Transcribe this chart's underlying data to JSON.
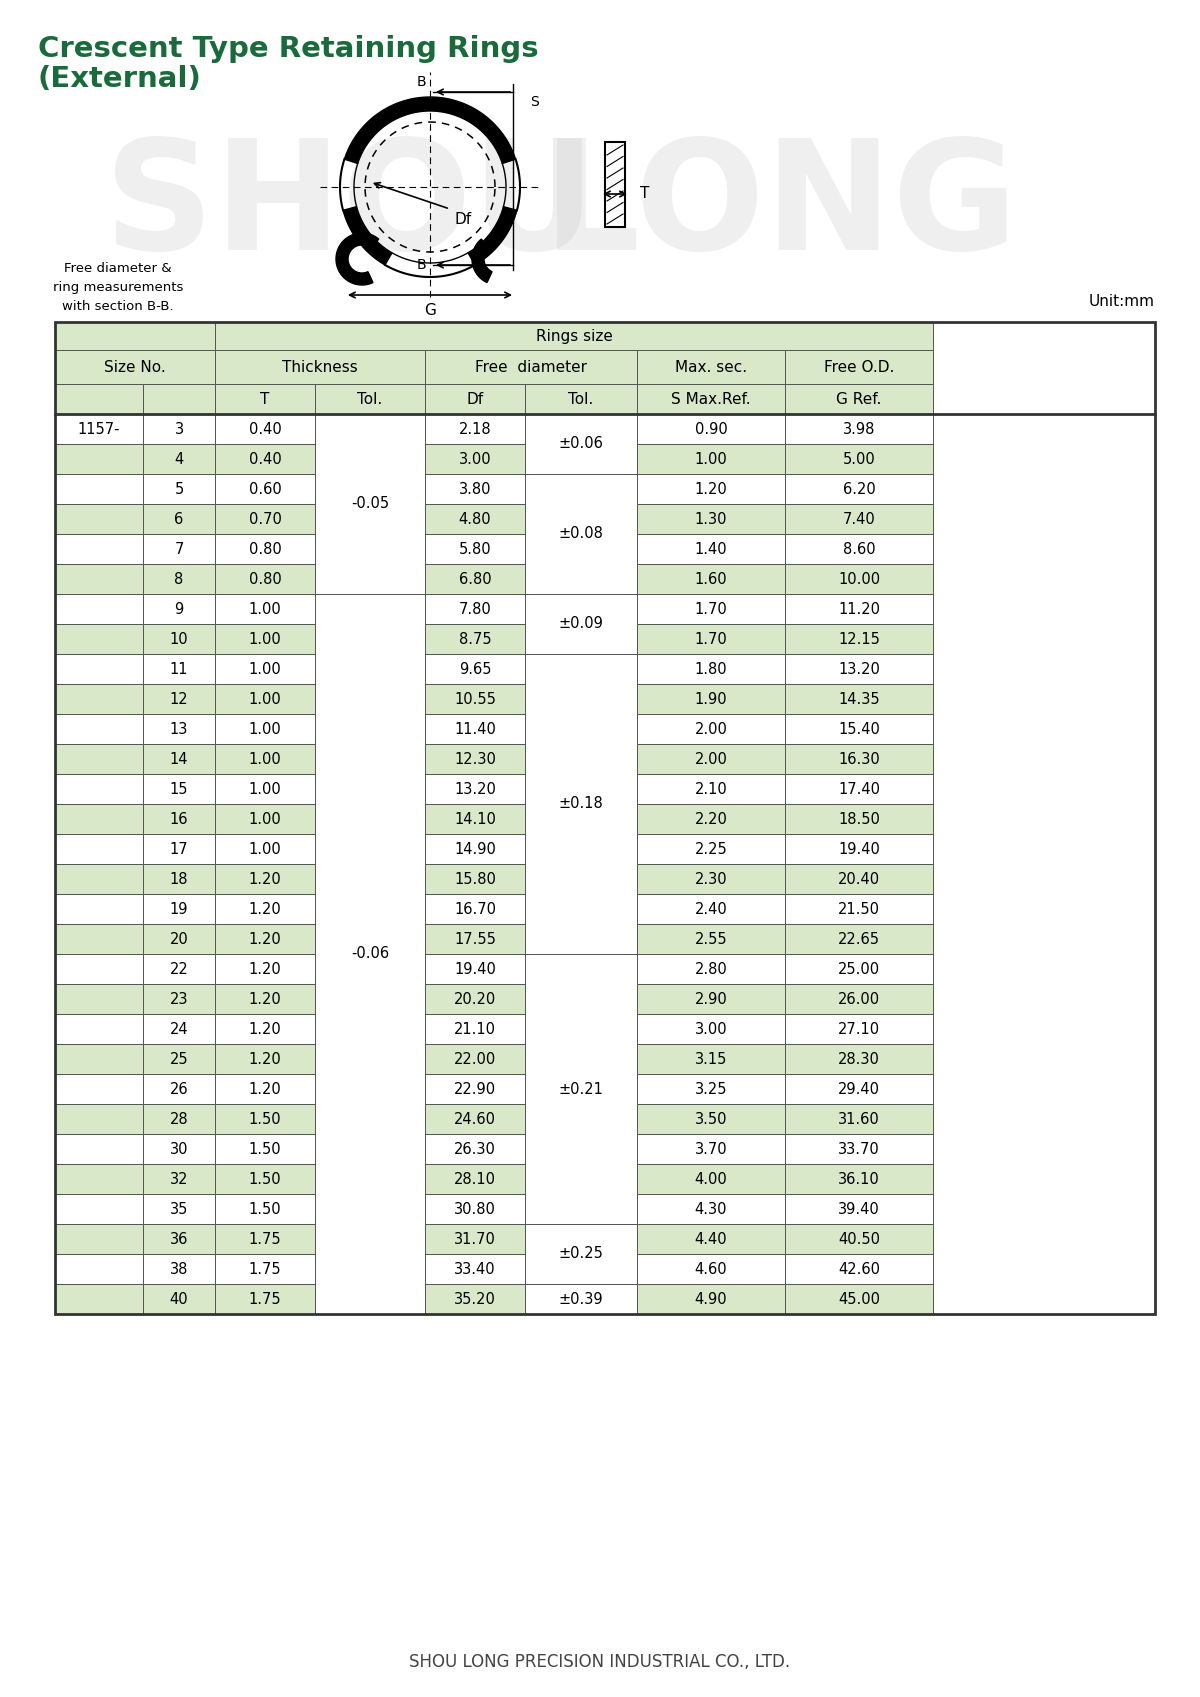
{
  "title_line1": "Crescent Type Retaining Rings",
  "title_line2": "(External)",
  "title_color": "#1a6b3c",
  "bg_color": "#ffffff",
  "unit_text": "Unit:mm",
  "footer_text": "SHOU LONG PRECISION INDUSTRIAL CO., LTD.",
  "light_green": "#d8e8c8",
  "table_border_color": "#555555",
  "table_data": [
    [
      "1157-",
      "3",
      "0.40",
      "2.18",
      "0.90",
      "3.98"
    ],
    [
      "",
      "4",
      "0.40",
      "3.00",
      "1.00",
      "5.00"
    ],
    [
      "",
      "5",
      "0.60",
      "3.80",
      "1.20",
      "6.20"
    ],
    [
      "",
      "6",
      "0.70",
      "4.80",
      "1.30",
      "7.40"
    ],
    [
      "",
      "7",
      "0.80",
      "5.80",
      "1.40",
      "8.60"
    ],
    [
      "",
      "8",
      "0.80",
      "6.80",
      "1.60",
      "10.00"
    ],
    [
      "",
      "9",
      "1.00",
      "7.80",
      "1.70",
      "11.20"
    ],
    [
      "",
      "10",
      "1.00",
      "8.75",
      "1.70",
      "12.15"
    ],
    [
      "",
      "11",
      "1.00",
      "9.65",
      "1.80",
      "13.20"
    ],
    [
      "",
      "12",
      "1.00",
      "10.55",
      "1.90",
      "14.35"
    ],
    [
      "",
      "13",
      "1.00",
      "11.40",
      "2.00",
      "15.40"
    ],
    [
      "",
      "14",
      "1.00",
      "12.30",
      "2.00",
      "16.30"
    ],
    [
      "",
      "15",
      "1.00",
      "13.20",
      "2.10",
      "17.40"
    ],
    [
      "",
      "16",
      "1.00",
      "14.10",
      "2.20",
      "18.50"
    ],
    [
      "",
      "17",
      "1.00",
      "14.90",
      "2.25",
      "19.40"
    ],
    [
      "",
      "18",
      "1.20",
      "15.80",
      "2.30",
      "20.40"
    ],
    [
      "",
      "19",
      "1.20",
      "16.70",
      "2.40",
      "21.50"
    ],
    [
      "",
      "20",
      "1.20",
      "17.55",
      "2.55",
      "22.65"
    ],
    [
      "",
      "22",
      "1.20",
      "19.40",
      "2.80",
      "25.00"
    ],
    [
      "",
      "23",
      "1.20",
      "20.20",
      "2.90",
      "26.00"
    ],
    [
      "",
      "24",
      "1.20",
      "21.10",
      "3.00",
      "27.10"
    ],
    [
      "",
      "25",
      "1.20",
      "22.00",
      "3.15",
      "28.30"
    ],
    [
      "",
      "26",
      "1.20",
      "22.90",
      "3.25",
      "29.40"
    ],
    [
      "",
      "28",
      "1.50",
      "24.60",
      "3.50",
      "31.60"
    ],
    [
      "",
      "30",
      "1.50",
      "26.30",
      "3.70",
      "33.70"
    ],
    [
      "",
      "32",
      "1.50",
      "28.10",
      "4.00",
      "36.10"
    ],
    [
      "",
      "35",
      "1.50",
      "30.80",
      "4.30",
      "39.40"
    ],
    [
      "",
      "36",
      "1.75",
      "31.70",
      "4.40",
      "40.50"
    ],
    [
      "",
      "38",
      "1.75",
      "33.40",
      "4.60",
      "42.60"
    ],
    [
      "",
      "40",
      "1.75",
      "35.20",
      "4.90",
      "45.00"
    ]
  ],
  "tol3_spans": [
    [
      0,
      5,
      "-0.05"
    ],
    [
      6,
      29,
      "-0.06"
    ]
  ],
  "tol5_spans": [
    [
      0,
      1,
      "±0.06"
    ],
    [
      2,
      5,
      "±0.08"
    ],
    [
      6,
      7,
      "±0.09"
    ],
    [
      8,
      17,
      "±0.18"
    ],
    [
      18,
      26,
      "±0.21"
    ],
    [
      27,
      28,
      "±0.25"
    ],
    [
      29,
      29,
      "±0.39"
    ]
  ]
}
